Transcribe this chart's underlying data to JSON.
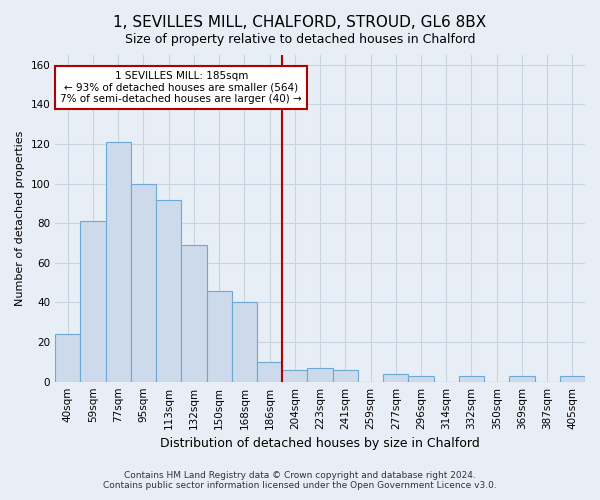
{
  "title": "1, SEVILLES MILL, CHALFORD, STROUD, GL6 8BX",
  "subtitle": "Size of property relative to detached houses in Chalford",
  "xlabel": "Distribution of detached houses by size in Chalford",
  "ylabel": "Number of detached properties",
  "bar_labels": [
    "40sqm",
    "59sqm",
    "77sqm",
    "95sqm",
    "113sqm",
    "132sqm",
    "150sqm",
    "168sqm",
    "186sqm",
    "204sqm",
    "223sqm",
    "241sqm",
    "259sqm",
    "277sqm",
    "296sqm",
    "314sqm",
    "332sqm",
    "350sqm",
    "369sqm",
    "387sqm",
    "405sqm"
  ],
  "bar_values": [
    24,
    81,
    121,
    100,
    92,
    69,
    46,
    40,
    10,
    6,
    7,
    6,
    0,
    4,
    3,
    0,
    3,
    0,
    3,
    0,
    3
  ],
  "bar_color": "#ccdaeb",
  "bar_edge_color": "#6aaad4",
  "vline_index": 8,
  "vline_color": "#b00000",
  "ylim": [
    0,
    165
  ],
  "yticks": [
    0,
    20,
    40,
    60,
    80,
    100,
    120,
    140,
    160
  ],
  "annotation_line1": "1 SEVILLES MILL: 185sqm",
  "annotation_line2": "← 93% of detached houses are smaller (564)",
  "annotation_line3": "7% of semi-detached houses are larger (40) →",
  "annotation_box_facecolor": "#ffffff",
  "annotation_box_edgecolor": "#b00000",
  "footer_line1": "Contains HM Land Registry data © Crown copyright and database right 2024.",
  "footer_line2": "Contains public sector information licensed under the Open Government Licence v3.0.",
  "background_color": "#e8eef5",
  "grid_color": "#c8d4e0",
  "title_fontsize": 11,
  "subtitle_fontsize": 9,
  "xlabel_fontsize": 9,
  "ylabel_fontsize": 8,
  "tick_fontsize": 7.5,
  "footer_fontsize": 6.5
}
